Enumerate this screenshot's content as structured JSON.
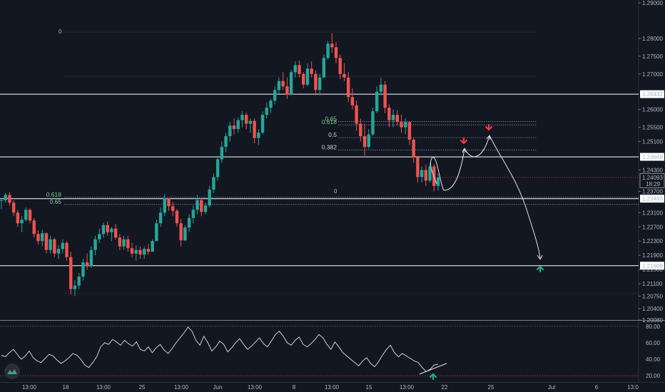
{
  "chart_data": {
    "type": "candlestick",
    "price_axis": {
      "ticks": [
        "1.29000",
        "1.28000",
        "1.27500",
        "1.27000",
        "1.26000",
        "1.25500",
        "1.25100",
        "1.24300",
        "1.23700",
        "1.23100",
        "1.22700",
        "1.22300",
        "1.21900",
        "1.21500",
        "1.21100",
        "1.20750",
        "1.20400",
        "1.20080"
      ],
      "tick_values": [
        1.29,
        1.28,
        1.275,
        1.27,
        1.26,
        1.255,
        1.251,
        1.243,
        1.237,
        1.231,
        1.227,
        1.223,
        1.219,
        1.215,
        1.211,
        1.2075,
        1.204,
        1.2008
      ],
      "range": [
        1.2008,
        1.29
      ]
    },
    "levels": [
      {
        "label": "1.26432",
        "value": 1.26432,
        "color": "#ffffff",
        "bg": "#ffffff",
        "fg": "#131722"
      },
      {
        "label": "1.24669",
        "value": 1.24669,
        "color": "#ffffff",
        "bg": "#ffffff",
        "fg": "#131722"
      },
      {
        "label": "1.23493",
        "value": 1.23493,
        "color": "#ffffff",
        "bg": "#ffffff",
        "fg": "#131722"
      },
      {
        "label": "1.21608",
        "value": 1.21608,
        "color": "#ffffff",
        "bg": "#ffffff",
        "fg": "#131722"
      }
    ],
    "current_price": {
      "label": "1.24093",
      "value": 1.24093,
      "countdown": "18:29"
    },
    "fib_right": [
      {
        "label": "0.65",
        "value": 1.2566,
        "color": "#81c784"
      },
      {
        "label": "0.618",
        "value": 1.2557,
        "color": "#81c784"
      },
      {
        "label": "0.5",
        "value": 1.2521,
        "color": "#d1d4dc"
      },
      {
        "label": "0.382",
        "value": 1.2486,
        "color": "#d1d4dc"
      }
    ],
    "fib_left": [
      {
        "label": "0.618",
        "value": 1.2353,
        "color": "#81c784"
      },
      {
        "label": "0.65",
        "value": 1.2333,
        "color": "#81c784"
      }
    ],
    "fib_zero_label": "0",
    "x_axis": {
      "labels": [
        "13:00",
        "18",
        "13:00",
        "25",
        "13:00",
        "Jun",
        "13:00",
        "8",
        "13:00",
        "15",
        "13:00",
        "22",
        "25",
        "Jul",
        "6",
        "13:0"
      ]
    },
    "candles_hlc": [
      [
        1.2352,
        1.232,
        1.2345
      ],
      [
        1.2365,
        1.2338,
        1.236
      ],
      [
        1.2368,
        1.233,
        1.2338
      ],
      [
        1.2345,
        1.23,
        1.231
      ],
      [
        1.2318,
        1.227,
        1.228
      ],
      [
        1.23,
        1.2255,
        1.229
      ],
      [
        1.2325,
        1.2285,
        1.2318
      ],
      [
        1.2322,
        1.228,
        1.2288
      ],
      [
        1.2295,
        1.224,
        1.225
      ],
      [
        1.226,
        1.222,
        1.223
      ],
      [
        1.2262,
        1.2215,
        1.2252
      ],
      [
        1.2255,
        1.2195,
        1.2205
      ],
      [
        1.2245,
        1.2195,
        1.2235
      ],
      [
        1.224,
        1.2185,
        1.2195
      ],
      [
        1.2218,
        1.218,
        1.2208
      ],
      [
        1.2235,
        1.2195,
        1.2225
      ],
      [
        1.223,
        1.2175,
        1.2185
      ],
      [
        1.22,
        1.208,
        1.2095
      ],
      [
        1.212,
        1.2075,
        1.2105
      ],
      [
        1.214,
        1.2095,
        1.213
      ],
      [
        1.218,
        1.212,
        1.217
      ],
      [
        1.2195,
        1.215,
        1.216
      ],
      [
        1.2215,
        1.2155,
        1.2205
      ],
      [
        1.2245,
        1.219,
        1.2235
      ],
      [
        1.2265,
        1.2225,
        1.225
      ],
      [
        1.2282,
        1.224,
        1.2275
      ],
      [
        1.2285,
        1.2245,
        1.2255
      ],
      [
        1.227,
        1.223,
        1.2265
      ],
      [
        1.2278,
        1.2235,
        1.224
      ],
      [
        1.225,
        1.2205,
        1.2215
      ],
      [
        1.2245,
        1.2205,
        1.2235
      ],
      [
        1.2245,
        1.22,
        1.221
      ],
      [
        1.2225,
        1.2185,
        1.2195
      ],
      [
        1.2218,
        1.2175,
        1.2205
      ],
      [
        1.2215,
        1.218,
        1.2192
      ],
      [
        1.2215,
        1.218,
        1.2208
      ],
      [
        1.2222,
        1.2192,
        1.22
      ],
      [
        1.2235,
        1.22,
        1.223
      ],
      [
        1.229,
        1.223,
        1.228
      ],
      [
        1.2325,
        1.227,
        1.231
      ],
      [
        1.2362,
        1.23,
        1.235
      ],
      [
        1.235,
        1.2315,
        1.2328
      ],
      [
        1.234,
        1.23,
        1.2315
      ],
      [
        1.232,
        1.227,
        1.228
      ],
      [
        1.2292,
        1.2215,
        1.2232
      ],
      [
        1.2275,
        1.223,
        1.2268
      ],
      [
        1.2305,
        1.2255,
        1.2295
      ],
      [
        1.233,
        1.228,
        1.2318
      ],
      [
        1.236,
        1.2305,
        1.2345
      ],
      [
        1.235,
        1.23,
        1.2312
      ],
      [
        1.2338,
        1.2305,
        1.233
      ],
      [
        1.2385,
        1.2325,
        1.2375
      ],
      [
        1.242,
        1.2365,
        1.241
      ],
      [
        1.247,
        1.24,
        1.246
      ],
      [
        1.251,
        1.245,
        1.2495
      ],
      [
        1.2535,
        1.248,
        1.2525
      ],
      [
        1.2565,
        1.251,
        1.2555
      ],
      [
        1.2575,
        1.253,
        1.2545
      ],
      [
        1.2578,
        1.2535,
        1.257
      ],
      [
        1.2595,
        1.255,
        1.2585
      ],
      [
        1.2592,
        1.2545,
        1.256
      ],
      [
        1.2575,
        1.2535,
        1.2568
      ],
      [
        1.2575,
        1.2505,
        1.252
      ],
      [
        1.2545,
        1.25,
        1.2535
      ],
      [
        1.2595,
        1.253,
        1.2585
      ],
      [
        1.262,
        1.2575,
        1.2605
      ],
      [
        1.263,
        1.259,
        1.2625
      ],
      [
        1.2665,
        1.2615,
        1.2655
      ],
      [
        1.269,
        1.2645,
        1.268
      ],
      [
        1.2705,
        1.2655,
        1.2665
      ],
      [
        1.269,
        1.263,
        1.2642
      ],
      [
        1.2712,
        1.264,
        1.2705
      ],
      [
        1.2735,
        1.269,
        1.2725
      ],
      [
        1.2738,
        1.269,
        1.27
      ],
      [
        1.2705,
        1.266,
        1.267
      ],
      [
        1.273,
        1.2665,
        1.2715
      ],
      [
        1.2735,
        1.269,
        1.27
      ],
      [
        1.271,
        1.264,
        1.2655
      ],
      [
        1.27,
        1.264,
        1.269
      ],
      [
        1.2755,
        1.269,
        1.2745
      ],
      [
        1.2792,
        1.274,
        1.2785
      ],
      [
        1.2815,
        1.276,
        1.2775
      ],
      [
        1.279,
        1.273,
        1.2745
      ],
      [
        1.2755,
        1.2685,
        1.27
      ],
      [
        1.273,
        1.268,
        1.269
      ],
      [
        1.2705,
        1.262,
        1.2635
      ],
      [
        1.266,
        1.26,
        1.2612
      ],
      [
        1.2625,
        1.254,
        1.256
      ],
      [
        1.2575,
        1.251,
        1.2525
      ],
      [
        1.256,
        1.247,
        1.2495
      ],
      [
        1.2545,
        1.249,
        1.253
      ],
      [
        1.2605,
        1.2525,
        1.2595
      ],
      [
        1.2665,
        1.259,
        1.265
      ],
      [
        1.269,
        1.264,
        1.267
      ],
      [
        1.268,
        1.259,
        1.2605
      ],
      [
        1.2615,
        1.255,
        1.257
      ],
      [
        1.26,
        1.255,
        1.2585
      ],
      [
        1.2598,
        1.2555,
        1.2565
      ],
      [
        1.2585,
        1.2535,
        1.255
      ],
      [
        1.2575,
        1.253,
        1.2565
      ],
      [
        1.256,
        1.25,
        1.2515
      ],
      [
        1.252,
        1.245,
        1.2465
      ],
      [
        1.247,
        1.2395,
        1.241
      ],
      [
        1.244,
        1.2395,
        1.243
      ],
      [
        1.2445,
        1.2385,
        1.24
      ],
      [
        1.245,
        1.2395,
        1.244
      ],
      [
        1.2445,
        1.237,
        1.2385
      ],
      [
        1.242,
        1.2372,
        1.2409
      ]
    ],
    "curves_note": "projection arrows",
    "oscillator": {
      "ticks": [
        "80.00",
        "60.00",
        "40.00",
        "20.00"
      ],
      "tick_values": [
        80,
        60,
        40,
        20
      ],
      "range": [
        15,
        85
      ],
      "values": [
        45,
        43,
        48,
        52,
        46,
        40,
        44,
        50,
        42,
        38,
        36,
        41,
        46,
        44,
        39,
        35,
        38,
        42,
        47,
        45,
        40,
        33,
        30,
        36,
        43,
        55,
        60,
        58,
        64,
        61,
        57,
        63,
        59,
        56,
        61,
        52,
        50,
        55,
        48,
        54,
        58,
        51,
        47,
        53,
        60,
        66,
        72,
        79,
        74,
        63,
        57,
        68,
        60,
        50,
        55,
        62,
        58,
        49,
        54,
        60,
        65,
        58,
        52,
        56,
        61,
        66,
        59,
        55,
        62,
        70,
        74,
        68,
        60,
        57,
        63,
        67,
        58,
        55,
        59,
        64,
        70,
        66,
        58,
        52,
        61,
        55,
        48,
        44,
        40,
        36,
        32,
        38,
        42,
        35,
        31,
        37,
        45,
        52,
        57,
        48,
        43,
        47,
        44,
        41,
        38,
        36,
        30,
        25,
        28,
        33,
        34
      ]
    }
  }
}
